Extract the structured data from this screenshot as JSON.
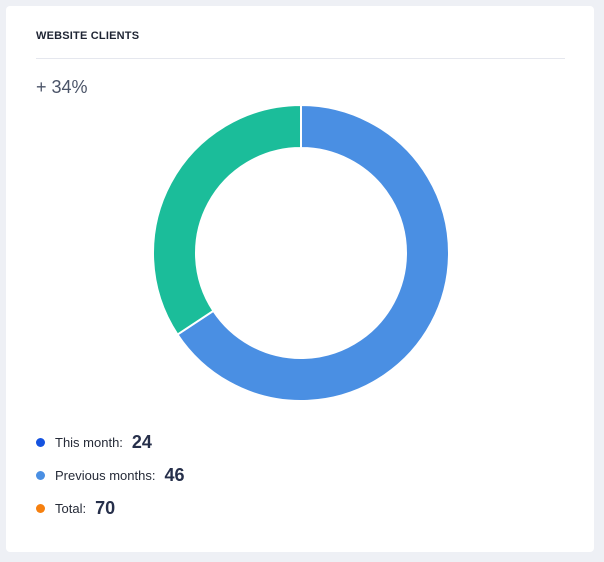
{
  "card": {
    "title": "WEBSITE CLIENTS",
    "growth": "+ 34%"
  },
  "chart_data": {
    "type": "pie",
    "donut": true,
    "title": "",
    "series": [
      {
        "name": "Previous months",
        "value": 46,
        "color": "#4a8fe3"
      },
      {
        "name": "This month",
        "value": 24,
        "color": "#1bbd9a"
      }
    ],
    "total": 70
  },
  "legend": {
    "items": [
      {
        "label": "This month:",
        "value": "24",
        "color": "#1553e0"
      },
      {
        "label": "Previous months:",
        "value": "46",
        "color": "#4a8fe3"
      },
      {
        "label": "Total:",
        "value": "70",
        "color": "#f6800f"
      }
    ]
  }
}
